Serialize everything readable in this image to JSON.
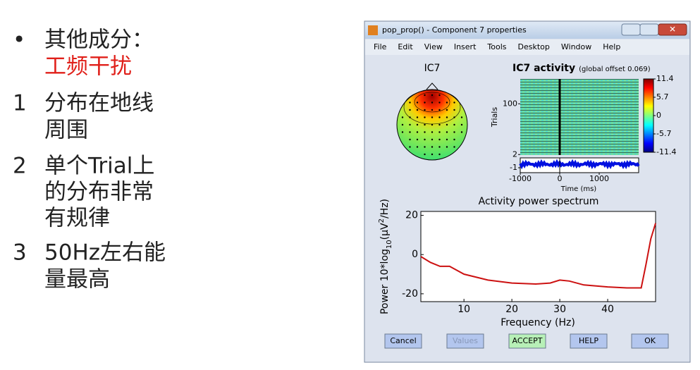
{
  "slide": {
    "items": [
      {
        "marker": "•",
        "lines": [
          "其他成分："
        ],
        "highlight": "工频干扰"
      },
      {
        "marker": "1",
        "lines": [
          "分布在地线",
          "周围"
        ]
      },
      {
        "marker": "2",
        "lines": [
          "单个Trial上",
          "的分布非常",
          "有规律"
        ]
      },
      {
        "marker": "3",
        "lines": [
          "50Hz左右能",
          "量最高"
        ]
      }
    ]
  },
  "window": {
    "title": "pop_prop() - Component 7 properties",
    "menu": [
      "File",
      "Edit",
      "View",
      "Insert",
      "Tools",
      "Desktop",
      "Window",
      "Help"
    ],
    "buttons": [
      "Cancel",
      "Values",
      "ACCEPT",
      "HELP",
      "OK"
    ]
  },
  "scalp": {
    "title": "IC7"
  },
  "activity": {
    "title": "IC7 activity",
    "subtitle": "(global offset 0.069)",
    "ylabel": "Trials",
    "xlabel": "Time (ms)",
    "xlim": [
      -1000,
      2000
    ],
    "xticks": [
      -1000,
      0,
      1000
    ],
    "ylim": [
      1,
      148
    ],
    "yticks": [
      100,
      2
    ],
    "erp_ylim": [
      -2,
      1
    ],
    "erp_yticks": [
      -1
    ],
    "clim": [
      -11.4,
      11.4
    ],
    "cticks": [
      11.4,
      5.7,
      0,
      -5.7,
      -11.4
    ]
  },
  "chart_data": {
    "type": "line",
    "title": "Activity power spectrum",
    "xlabel": "Frequency (Hz)",
    "ylabel": [
      "Power 10*log",
      "10",
      "(μV",
      "2",
      "/Hz)"
    ],
    "x": [
      1,
      3,
      5,
      7,
      10,
      15,
      20,
      25,
      28,
      30,
      32,
      35,
      40,
      44,
      47,
      48,
      49,
      50
    ],
    "values": [
      -1,
      -4,
      -6,
      -6,
      -10,
      -13,
      -14.5,
      -15,
      -14.5,
      -13,
      -13.5,
      -15.5,
      -16.5,
      -17,
      -17,
      -5,
      8,
      16
    ],
    "color": "#cc1111",
    "xlim": [
      1,
      50
    ],
    "ylim": [
      -24,
      22
    ],
    "xticks": [
      10,
      20,
      30,
      40
    ],
    "yticks": [
      20,
      0,
      -20
    ]
  }
}
